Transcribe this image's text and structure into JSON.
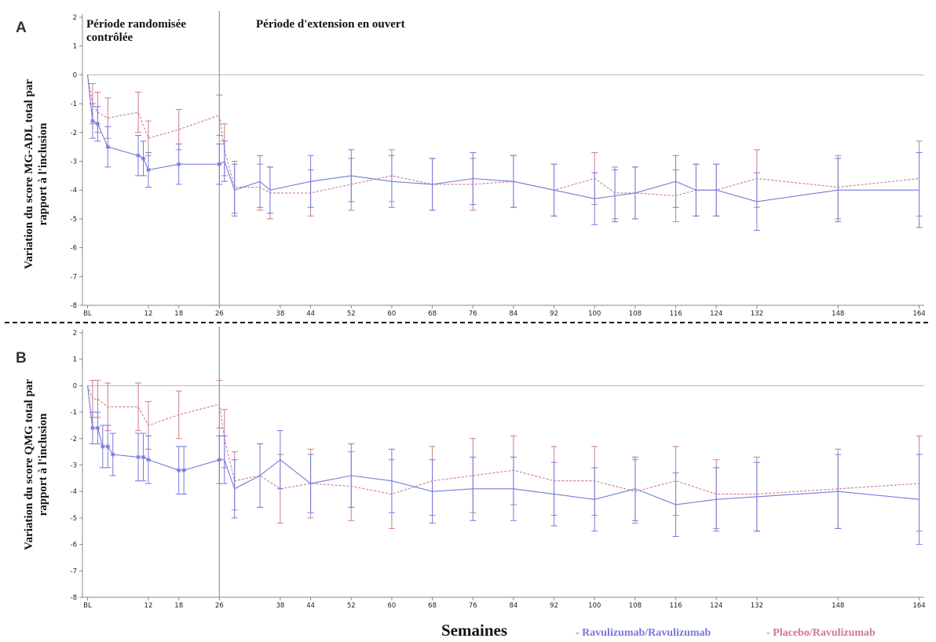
{
  "colors": {
    "ravulizumab": "#7878dc",
    "placebo": "#cc7a8e",
    "period_line": "#7ba6a6",
    "zero_line": "#b5b5b5",
    "separator": "#111111"
  },
  "shared": {
    "xlabel": "Semaines",
    "period_randomized_line1": "Période randomisée",
    "period_randomized_line2": "contrôlée",
    "period_extension": "Période d'extension en ouvert",
    "legend_ravulizumab": "- Ravulizumab/Ravulizumab",
    "legend_placebo": "- Placebo/Ravulizumab"
  },
  "chart_data": [
    {
      "panel": "A",
      "type": "line",
      "ylabel_line1": "Variation du score MG-ADL total par",
      "ylabel_line2": "rapport à l'inclusion",
      "xlabel": "Semaines",
      "ylim": [
        -8,
        2
      ],
      "yticks": [
        "2",
        "1",
        "0",
        "-1",
        "-2",
        "-3",
        "-4",
        "-5",
        "-6",
        "-7",
        "-8"
      ],
      "xlim": [
        -1,
        165
      ],
      "xticks": [
        {
          "x": 0,
          "label": "BL"
        },
        {
          "x": 12,
          "label": "12"
        },
        {
          "x": 18,
          "label": "18"
        },
        {
          "x": 26,
          "label": "26"
        },
        {
          "x": 38,
          "label": "38"
        },
        {
          "x": 44,
          "label": "44"
        },
        {
          "x": 52,
          "label": "52"
        },
        {
          "x": 60,
          "label": "60"
        },
        {
          "x": 68,
          "label": "68"
        },
        {
          "x": 76,
          "label": "76"
        },
        {
          "x": 84,
          "label": "84"
        },
        {
          "x": 92,
          "label": "92"
        },
        {
          "x": 100,
          "label": "100"
        },
        {
          "x": 108,
          "label": "108"
        },
        {
          "x": 116,
          "label": "116"
        },
        {
          "x": 124,
          "label": "124"
        },
        {
          "x": 132,
          "label": "132"
        },
        {
          "x": 148,
          "label": "148"
        },
        {
          "x": 164,
          "label": "164"
        }
      ],
      "vline_x": 26,
      "series": [
        {
          "name": "Ravulizumab/Ravulizumab",
          "color_key": "ravulizumab",
          "x": [
            0,
            1,
            2,
            4,
            10,
            11,
            12,
            18,
            26,
            27,
            29,
            34,
            36,
            44,
            52,
            60,
            68,
            76,
            84,
            92,
            100,
            104,
            108,
            116,
            120,
            124,
            132,
            148,
            164
          ],
          "y": [
            0,
            -1.6,
            -1.7,
            -2.5,
            -2.8,
            -2.9,
            -3.3,
            -3.1,
            -3.1,
            -3.0,
            -4.0,
            -3.7,
            -4.0,
            -3.7,
            -3.5,
            -3.7,
            -3.8,
            -3.6,
            -3.7,
            -4.0,
            -4.3,
            -4.2,
            -4.1,
            -3.7,
            -4.0,
            -4.0,
            -4.4,
            -4.0,
            -4.0
          ],
          "err": [
            0,
            0.6,
            0.6,
            0.7,
            0.7,
            0.6,
            0.6,
            0.7,
            0.7,
            0.7,
            0.9,
            0.9,
            0.8,
            0.9,
            0.9,
            0.9,
            0.9,
            0.9,
            0.9,
            0.9,
            0.9,
            0.9,
            0.9,
            0.9,
            0.9,
            0.9,
            1.0,
            1.1,
            1.3
          ],
          "markers_until_x": 26
        },
        {
          "name": "Placebo/Ravulizumab",
          "color_key": "placebo",
          "x": [
            0,
            1,
            2,
            4,
            10,
            12,
            18,
            26,
            27,
            29,
            34,
            36,
            44,
            52,
            60,
            68,
            76,
            84,
            92,
            100,
            104,
            108,
            116,
            120,
            124,
            132,
            148,
            164
          ],
          "y": [
            0,
            -1.0,
            -1.3,
            -1.5,
            -1.3,
            -2.2,
            -1.9,
            -1.4,
            -2.6,
            -3.9,
            -3.9,
            -4.1,
            -4.1,
            -3.8,
            -3.5,
            -3.8,
            -3.8,
            -3.7,
            -4.0,
            -3.6,
            -4.1,
            -4.1,
            -4.2,
            -4.0,
            -4.0,
            -3.6,
            -3.9,
            -3.6
          ],
          "err": [
            0,
            0.7,
            0.7,
            0.7,
            0.7,
            0.6,
            0.7,
            0.7,
            0.9,
            0.9,
            0.8,
            0.9,
            0.8,
            0.9,
            0.9,
            0.9,
            0.9,
            0.9,
            0.9,
            0.9,
            0.9,
            0.9,
            0.9,
            0.9,
            0.9,
            1.0,
            1.1,
            1.3
          ]
        }
      ]
    },
    {
      "panel": "B",
      "type": "line",
      "ylabel_line1": "Variation du score QMG total par",
      "ylabel_line2": "rapport à l'inclusion",
      "xlabel": "Semaines",
      "ylim": [
        -8,
        2
      ],
      "yticks": [
        "2",
        "1",
        "0",
        "-1",
        "-2",
        "-3",
        "-4",
        "-5",
        "-6",
        "-7",
        "-8"
      ],
      "xlim": [
        -1,
        165
      ],
      "xticks": [
        {
          "x": 0,
          "label": "BL"
        },
        {
          "x": 12,
          "label": "12"
        },
        {
          "x": 18,
          "label": "18"
        },
        {
          "x": 26,
          "label": "26"
        },
        {
          "x": 38,
          "label": "38"
        },
        {
          "x": 44,
          "label": "44"
        },
        {
          "x": 52,
          "label": "52"
        },
        {
          "x": 60,
          "label": "60"
        },
        {
          "x": 68,
          "label": "68"
        },
        {
          "x": 76,
          "label": "76"
        },
        {
          "x": 84,
          "label": "84"
        },
        {
          "x": 92,
          "label": "92"
        },
        {
          "x": 100,
          "label": "100"
        },
        {
          "x": 108,
          "label": "108"
        },
        {
          "x": 116,
          "label": "116"
        },
        {
          "x": 124,
          "label": "124"
        },
        {
          "x": 132,
          "label": "132"
        },
        {
          "x": 148,
          "label": "148"
        },
        {
          "x": 164,
          "label": "164"
        }
      ],
      "vline_x": 26,
      "series": [
        {
          "name": "Ravulizumab/Ravulizumab",
          "color_key": "ravulizumab",
          "x": [
            0,
            1,
            2,
            3,
            4,
            5,
            10,
            11,
            12,
            18,
            19,
            26,
            27,
            29,
            34,
            38,
            44,
            52,
            60,
            68,
            76,
            84,
            92,
            100,
            108,
            116,
            124,
            132,
            148,
            164
          ],
          "y": [
            0,
            -1.6,
            -1.6,
            -2.3,
            -2.3,
            -2.6,
            -2.7,
            -2.7,
            -2.8,
            -3.2,
            -3.2,
            -2.8,
            -2.8,
            -3.9,
            -3.4,
            -2.8,
            -3.7,
            -3.4,
            -3.6,
            -4.0,
            -3.9,
            -3.9,
            -4.1,
            -4.3,
            -3.9,
            -4.5,
            -4.3,
            -4.2,
            -4.0,
            -4.3
          ],
          "err": [
            0,
            0.6,
            0.6,
            0.8,
            0.8,
            0.8,
            0.9,
            0.9,
            0.9,
            0.9,
            0.9,
            0.9,
            0.9,
            1.1,
            1.2,
            1.1,
            1.1,
            1.2,
            1.2,
            1.2,
            1.2,
            1.2,
            1.2,
            1.2,
            1.2,
            1.2,
            1.2,
            1.3,
            1.4,
            1.7
          ],
          "markers_until_x": 26
        },
        {
          "name": "Placebo/Ravulizumab",
          "color_key": "placebo",
          "x": [
            0,
            1,
            2,
            4,
            10,
            12,
            18,
            26,
            27,
            29,
            34,
            38,
            44,
            52,
            60,
            68,
            76,
            84,
            92,
            100,
            108,
            116,
            124,
            132,
            148,
            164
          ],
          "y": [
            0,
            -0.5,
            -0.5,
            -0.8,
            -0.8,
            -1.5,
            -1.1,
            -0.7,
            -2.0,
            -3.6,
            -3.4,
            -3.9,
            -3.7,
            -3.8,
            -4.1,
            -3.6,
            -3.4,
            -3.2,
            -3.6,
            -3.6,
            -4.0,
            -3.6,
            -4.1,
            -4.1,
            -3.9,
            -3.7
          ],
          "err": [
            0,
            0.7,
            0.7,
            0.9,
            0.9,
            0.9,
            0.9,
            0.9,
            1.1,
            1.1,
            1.2,
            1.3,
            1.3,
            1.3,
            1.3,
            1.3,
            1.4,
            1.3,
            1.3,
            1.3,
            1.2,
            1.3,
            1.3,
            1.4,
            1.5,
            1.8
          ]
        }
      ]
    }
  ]
}
